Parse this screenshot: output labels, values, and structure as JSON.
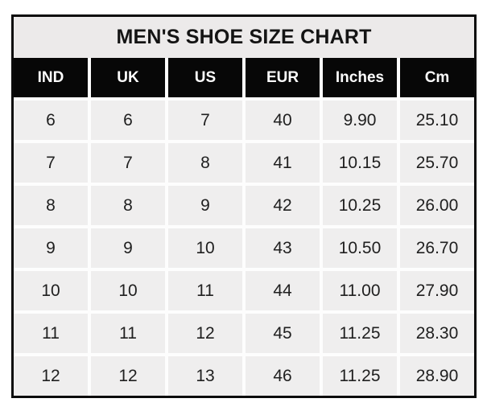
{
  "table": {
    "title": "MEN'S SHOE SIZE CHART",
    "columns": [
      "IND",
      "UK",
      "US",
      "EUR",
      "Inches",
      "Cm"
    ],
    "rows": [
      [
        "6",
        "6",
        "7",
        "40",
        "9.90",
        "25.10"
      ],
      [
        "7",
        "7",
        "8",
        "41",
        "10.15",
        "25.70"
      ],
      [
        "8",
        "8",
        "9",
        "42",
        "10.25",
        "26.00"
      ],
      [
        "9",
        "9",
        "10",
        "43",
        "10.50",
        "26.70"
      ],
      [
        "10",
        "10",
        "11",
        "44",
        "11.00",
        "27.90"
      ],
      [
        "11",
        "11",
        "12",
        "45",
        "11.25",
        "28.30"
      ],
      [
        "12",
        "12",
        "13",
        "46",
        "11.25",
        "28.90"
      ]
    ],
    "colors": {
      "outer_border": "#0b0b0b",
      "title_background": "#eceaea",
      "header_background": "#070707",
      "header_text": "#fcfcfc",
      "cell_background": "#efeeee",
      "cell_text": "#202020",
      "grid_gap": "#fdfdfd"
    }
  },
  "chart_data": {
    "type": "table",
    "title": "MEN'S SHOE SIZE CHART",
    "columns": [
      "IND",
      "UK",
      "US",
      "EUR",
      "Inches",
      "Cm"
    ],
    "rows": [
      [
        6,
        6,
        7,
        40,
        9.9,
        25.1
      ],
      [
        7,
        7,
        8,
        41,
        10.15,
        25.7
      ],
      [
        8,
        8,
        9,
        42,
        10.25,
        26.0
      ],
      [
        9,
        9,
        10,
        43,
        10.5,
        26.7
      ],
      [
        10,
        10,
        11,
        44,
        11.0,
        27.9
      ],
      [
        11,
        11,
        12,
        45,
        11.25,
        28.3
      ],
      [
        12,
        12,
        13,
        46,
        11.25,
        28.9
      ]
    ]
  }
}
